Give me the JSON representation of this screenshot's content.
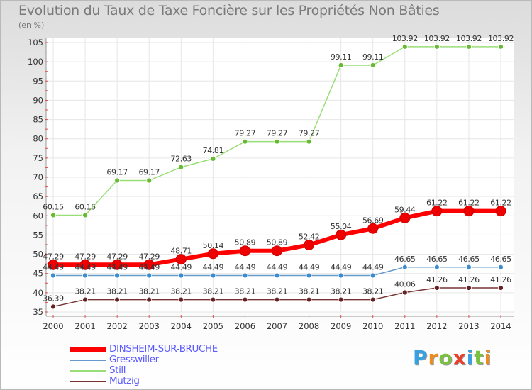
{
  "title": "Evolution du Taux de Taxe Foncière sur les Propriétés Non Bâties",
  "unit_label": "(en %)",
  "logo": {
    "letters": [
      "P",
      "r",
      "o",
      "x",
      "i",
      "t",
      "i"
    ],
    "colors": [
      "#3aa0e0",
      "#f08a1c",
      "#7ac142",
      "#e8402a",
      "#3aa0e0",
      "#7ac142",
      "#f08a1c"
    ]
  },
  "chart_data": {
    "type": "line",
    "x": [
      "2000",
      "2001",
      "2002",
      "2003",
      "2004",
      "2005",
      "2006",
      "2007",
      "2008",
      "2009",
      "2010",
      "2011",
      "2012",
      "2013",
      "2014"
    ],
    "ylim": [
      35,
      105
    ],
    "yticks": [
      "35",
      "40",
      "45",
      "50",
      "55",
      "60",
      "65",
      "70",
      "75",
      "80",
      "85",
      "90",
      "95",
      "100",
      "105"
    ],
    "grid": true,
    "legend_position": "bottom-left",
    "series": [
      {
        "name": "Still",
        "color": "#99dd77",
        "marker": "#66bb33",
        "values": [
          60.15,
          60.15,
          69.17,
          69.17,
          72.63,
          74.81,
          79.27,
          79.27,
          79.27,
          99.11,
          99.11,
          103.92,
          103.92,
          103.92,
          103.92
        ],
        "labels": [
          "60.15",
          "60.15",
          "69.17",
          "69.17",
          "72.63",
          "74.81",
          "79.27",
          "79.27",
          "79.27",
          "99.11",
          "99.11",
          "103.92",
          "103.92",
          "103.92",
          "103.92"
        ]
      },
      {
        "name": "DINSHEIM-SUR-BRUCHE",
        "color": "#ff0000",
        "marker": "#ee0000",
        "values": [
          47.29,
          47.29,
          47.29,
          47.29,
          48.71,
          50.14,
          50.89,
          50.89,
          52.42,
          55.04,
          56.69,
          59.44,
          61.22,
          61.22,
          61.22
        ],
        "labels": [
          "47.29",
          "47.29",
          "47.29",
          "47.29",
          "48.71",
          "50.14",
          "50.89",
          "50.89",
          "52.42",
          "55.04",
          "56.69",
          "59.44",
          "61.22",
          "61.22",
          "61.22"
        ]
      },
      {
        "name": "Gresswiller",
        "color": "#6699cc",
        "marker": "#3b8dd0",
        "values": [
          44.49,
          44.49,
          44.49,
          44.49,
          44.49,
          44.49,
          44.49,
          44.49,
          44.49,
          44.49,
          44.49,
          46.65,
          46.65,
          46.65,
          46.65
        ],
        "labels": [
          "44.49",
          "44.49",
          "44.49",
          "44.49",
          "44.49",
          "44.49",
          "44.49",
          "44.49",
          "44.49",
          "44.49",
          "44.49",
          "46.65",
          "46.65",
          "46.65",
          "46.65"
        ]
      },
      {
        "name": "Mutzig",
        "color": "#773333",
        "marker": "#662222",
        "values": [
          36.39,
          38.21,
          38.21,
          38.21,
          38.21,
          38.21,
          38.21,
          38.21,
          38.21,
          38.21,
          38.21,
          40.06,
          41.26,
          41.26,
          41.26
        ],
        "labels": [
          "36.39",
          "38.21",
          "38.21",
          "38.21",
          "38.21",
          "38.21",
          "38.21",
          "38.21",
          "38.21",
          "38.21",
          "38.21",
          "40.06",
          "41.26",
          "41.26",
          "41.26"
        ]
      }
    ],
    "legend": [
      "DINSHEIM-SUR-BRUCHE",
      "Gresswiller",
      "Still",
      "Mutzig"
    ]
  }
}
